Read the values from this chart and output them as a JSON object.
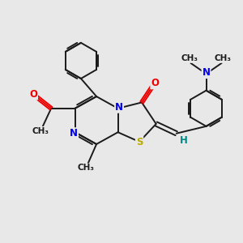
{
  "bg_color": "#e8e8e8",
  "bond_color": "#1a1a1a",
  "N_color": "#0000ee",
  "O_color": "#ee0000",
  "S_color": "#bbaa00",
  "H_color": "#008888",
  "figsize": [
    3.0,
    3.0
  ],
  "dpi": 100,
  "xlim": [
    0,
    10
  ],
  "ylim": [
    0,
    10
  ]
}
